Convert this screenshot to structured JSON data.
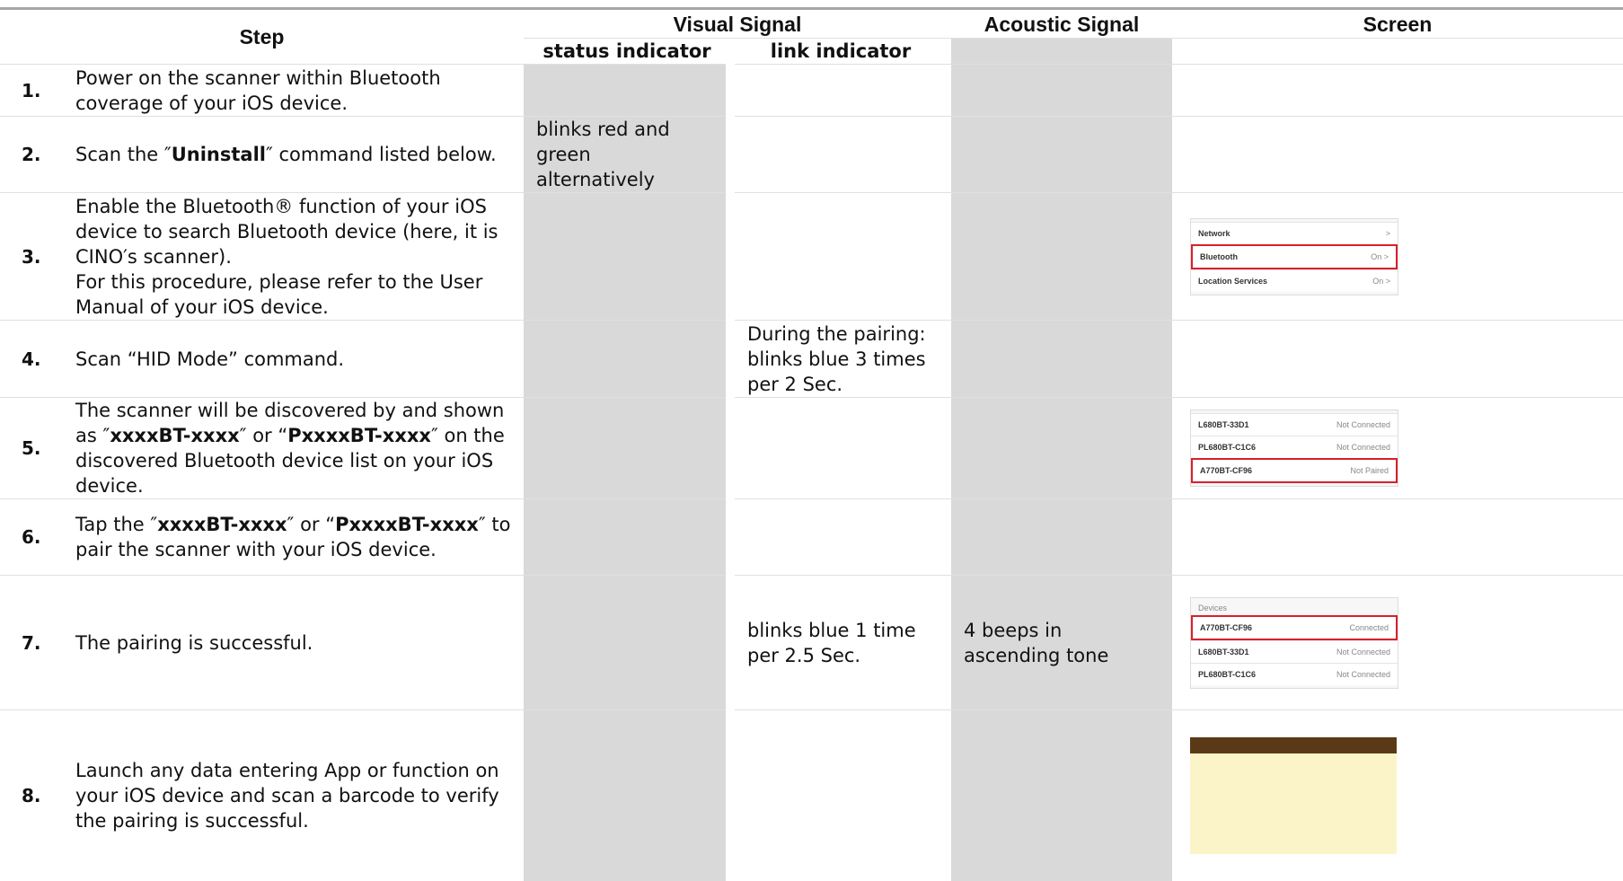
{
  "header": {
    "step": "Step",
    "visual_signal": "Visual Signal",
    "acoustic_signal": "Acoustic Signal",
    "screen": "Screen",
    "status_indicator": "status indicator",
    "link_indicator": "link indicator"
  },
  "rows": [
    {
      "number": "1.",
      "step": [
        {
          "text": "Power on the scanner within Bluetooth coverage of your iOS device."
        }
      ]
    },
    {
      "number": "2.",
      "step": [
        {
          "text": "Scan the ″"
        },
        {
          "text": "Uninstall",
          "bold": true
        },
        {
          "text": "″ command listed below."
        }
      ],
      "status": "blinks red and green alternatively"
    },
    {
      "number": "3.",
      "step": [
        {
          "text": "Enable the Bluetooth® function of your iOS device to search Bluetooth device (here, it is CINO′s scanner)."
        }
      ],
      "note": "For this procedure, please refer to the User Manual of your iOS device.",
      "screen": {
        "items": [
          {
            "label": "Network",
            "status": ">"
          },
          {
            "label": "Bluetooth",
            "status": "On >",
            "highlighted": true
          },
          {
            "label": "Location Services",
            "status": "On >"
          }
        ]
      }
    },
    {
      "number": "4.",
      "step": [
        {
          "text": "Scan “HID Mode” command."
        }
      ],
      "link": "During the pairing: blinks blue 3 times per 2 Sec."
    },
    {
      "number": "5.",
      "step": [
        {
          "text": "The scanner will be discovered by and shown as ″"
        },
        {
          "text": "xxxxBT-xxxx",
          "bold": true
        },
        {
          "text": "″ or “"
        },
        {
          "text": "PxxxxBT-xxxx",
          "bold": true
        },
        {
          "text": "″ on the discovered Bluetooth device list on your iOS device."
        }
      ],
      "screen": {
        "items": [
          {
            "label": "L680BT-33D1",
            "status": "Not Connected"
          },
          {
            "label": "PL680BT-C1C6",
            "status": "Not Connected"
          },
          {
            "label": "A770BT-CF96",
            "status": "Not Paired",
            "highlighted": true
          }
        ]
      }
    },
    {
      "number": "6.",
      "step": [
        {
          "text": "Tap the ″"
        },
        {
          "text": "xxxxBT-xxxx",
          "bold": true
        },
        {
          "text": "″ or “"
        },
        {
          "text": "PxxxxBT-xxxx",
          "bold": true
        },
        {
          "text": "″ to pair the scanner with your iOS device."
        }
      ]
    },
    {
      "number": "7.",
      "step": [
        {
          "text": "The pairing is successful."
        }
      ],
      "link": "blinks blue 1 time per 2.5 Sec.",
      "acoustic": "4 beeps in ascending tone",
      "screen": {
        "heading": "Devices",
        "items": [
          {
            "label": "A770BT-CF96",
            "status": "Connected",
            "highlighted": true
          },
          {
            "label": "L680BT-33D1",
            "status": "Not Connected"
          },
          {
            "label": "PL680BT-C1C6",
            "status": "Not Connected"
          }
        ]
      }
    },
    {
      "number": "8.",
      "step": [
        {
          "text": "Launch any data entering App or function on your iOS device and scan a barcode to verify the pairing is successful."
        }
      ],
      "screen": {
        "notes": true
      }
    }
  ]
}
